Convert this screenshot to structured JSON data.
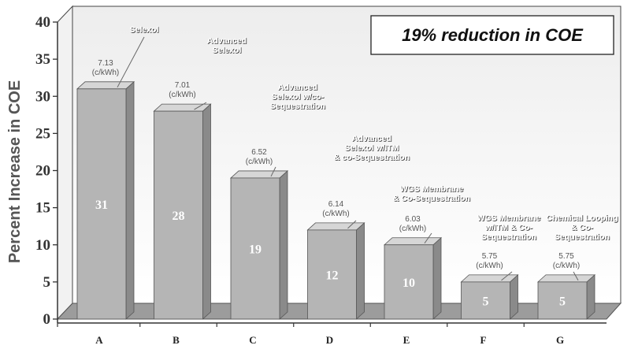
{
  "chart_data": {
    "type": "bar",
    "title": "19% reduction in COE",
    "xlabel": "",
    "ylabel": "Percent Increase in COE",
    "ylim": [
      0,
      40
    ],
    "yticks": [
      0,
      5,
      10,
      15,
      20,
      25,
      30,
      35,
      40
    ],
    "grid": false,
    "categories": [
      "A",
      "B",
      "C",
      "D",
      "E",
      "F",
      "G"
    ],
    "values": [
      31,
      28,
      19,
      12,
      10,
      5,
      5
    ],
    "value_labels": [
      "31",
      "28",
      "19",
      "12",
      "10",
      "5",
      "5"
    ],
    "cost": [
      "7.13",
      "7.01",
      "6.52",
      "6.14",
      "6.03",
      "5.75",
      "5.75"
    ],
    "cost_unit": "(c/kWh)",
    "annotations": [
      [
        "Selexol"
      ],
      [
        "Advanced",
        "Selexol"
      ],
      [
        "Advanced",
        "Selexol w/co-",
        "Sequestration"
      ],
      [
        "Advanced",
        "Selexol w/ITM",
        "& co-Sequestration"
      ],
      [
        "WGS Membrane",
        "& Co-Sequestration"
      ],
      [
        "WGS Membrane",
        "w/ITM & Co-",
        "Sequestration"
      ],
      [
        "Chemical Looping",
        "& Co-",
        "Sequestration"
      ]
    ]
  },
  "colors": {
    "bar_front": "#b5b5b5",
    "bar_top": "#d6d6d6",
    "bar_side": "#8a8a8a",
    "wall_top": "#ededed",
    "wall_bottom": "#ffffff",
    "floor": "#9c9c9c",
    "leader": "#666666"
  }
}
